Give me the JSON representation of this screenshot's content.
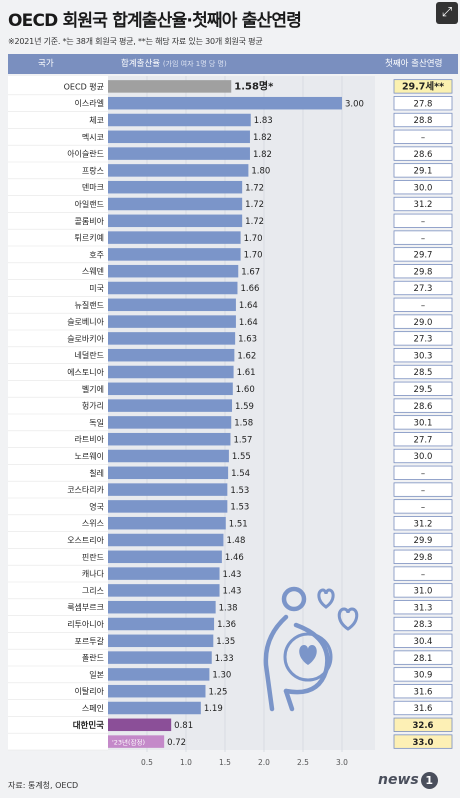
{
  "page": {
    "title": "OECD 회원국 합계출산율·첫째아 출산연령",
    "note": "※2021년 기준. *는 38개 회원국 평균, **는 해당 자료 있는 30개 회원국 평균",
    "header": {
      "country": "국가",
      "tfr": "합계출산율",
      "tfr_sub": "(가임 여자 1명 당 명)",
      "age": "첫째아 출산연령"
    },
    "source": "자료: 통계청, OECD",
    "logo": "news",
    "logo_num": "1",
    "expand_icon": "⤢"
  },
  "chart_data": {
    "type": "bar",
    "orientation": "horizontal",
    "title": "OECD 회원국 합계출산율·첫째아 출산연령",
    "xlim": [
      0,
      3.5
    ],
    "x_ticks": [
      0.5,
      1.0,
      1.5,
      2.0,
      2.5,
      3.0
    ],
    "tick_labels": [
      "0.5",
      "1.0",
      "1.5",
      "2.0",
      "2.5",
      "3.0"
    ],
    "rows": [
      {
        "country": "OECD 평균",
        "tfr": 1.58,
        "tfr_label": "1.58명*",
        "age": "29.7세**",
        "style": "avg"
      },
      {
        "country": "이스라엘",
        "tfr": 3.0,
        "tfr_label": "3.00",
        "age": "27.8",
        "style": "normal"
      },
      {
        "country": "체코",
        "tfr": 1.83,
        "tfr_label": "1.83",
        "age": "28.8",
        "style": "normal"
      },
      {
        "country": "멕시코",
        "tfr": 1.82,
        "tfr_label": "1.82",
        "age": "–",
        "style": "normal"
      },
      {
        "country": "아이슬란드",
        "tfr": 1.82,
        "tfr_label": "1.82",
        "age": "28.6",
        "style": "normal"
      },
      {
        "country": "프랑스",
        "tfr": 1.8,
        "tfr_label": "1.80",
        "age": "29.1",
        "style": "normal"
      },
      {
        "country": "덴마크",
        "tfr": 1.72,
        "tfr_label": "1.72",
        "age": "30.0",
        "style": "normal"
      },
      {
        "country": "아일랜드",
        "tfr": 1.72,
        "tfr_label": "1.72",
        "age": "31.2",
        "style": "normal"
      },
      {
        "country": "콜롬비아",
        "tfr": 1.72,
        "tfr_label": "1.72",
        "age": "–",
        "style": "normal"
      },
      {
        "country": "튀르키예",
        "tfr": 1.7,
        "tfr_label": "1.70",
        "age": "–",
        "style": "normal"
      },
      {
        "country": "호주",
        "tfr": 1.7,
        "tfr_label": "1.70",
        "age": "29.7",
        "style": "normal"
      },
      {
        "country": "스웨덴",
        "tfr": 1.67,
        "tfr_label": "1.67",
        "age": "29.8",
        "style": "normal"
      },
      {
        "country": "미국",
        "tfr": 1.66,
        "tfr_label": "1.66",
        "age": "27.3",
        "style": "normal"
      },
      {
        "country": "뉴질랜드",
        "tfr": 1.64,
        "tfr_label": "1.64",
        "age": "–",
        "style": "normal"
      },
      {
        "country": "슬로베니아",
        "tfr": 1.64,
        "tfr_label": "1.64",
        "age": "29.0",
        "style": "normal"
      },
      {
        "country": "슬로바키아",
        "tfr": 1.63,
        "tfr_label": "1.63",
        "age": "27.3",
        "style": "normal"
      },
      {
        "country": "네덜란드",
        "tfr": 1.62,
        "tfr_label": "1.62",
        "age": "30.3",
        "style": "normal"
      },
      {
        "country": "에스토니아",
        "tfr": 1.61,
        "tfr_label": "1.61",
        "age": "28.5",
        "style": "normal"
      },
      {
        "country": "벨기에",
        "tfr": 1.6,
        "tfr_label": "1.60",
        "age": "29.5",
        "style": "normal"
      },
      {
        "country": "헝가리",
        "tfr": 1.59,
        "tfr_label": "1.59",
        "age": "28.6",
        "style": "normal"
      },
      {
        "country": "독일",
        "tfr": 1.58,
        "tfr_label": "1.58",
        "age": "30.1",
        "style": "normal"
      },
      {
        "country": "라트비아",
        "tfr": 1.57,
        "tfr_label": "1.57",
        "age": "27.7",
        "style": "normal"
      },
      {
        "country": "노르웨이",
        "tfr": 1.55,
        "tfr_label": "1.55",
        "age": "30.0",
        "style": "normal"
      },
      {
        "country": "칠레",
        "tfr": 1.54,
        "tfr_label": "1.54",
        "age": "–",
        "style": "normal"
      },
      {
        "country": "코스타리카",
        "tfr": 1.53,
        "tfr_label": "1.53",
        "age": "–",
        "style": "normal"
      },
      {
        "country": "영국",
        "tfr": 1.53,
        "tfr_label": "1.53",
        "age": "–",
        "style": "normal"
      },
      {
        "country": "스위스",
        "tfr": 1.51,
        "tfr_label": "1.51",
        "age": "31.2",
        "style": "normal"
      },
      {
        "country": "오스트리아",
        "tfr": 1.48,
        "tfr_label": "1.48",
        "age": "29.9",
        "style": "normal"
      },
      {
        "country": "핀란드",
        "tfr": 1.46,
        "tfr_label": "1.46",
        "age": "29.8",
        "style": "normal"
      },
      {
        "country": "캐나다",
        "tfr": 1.43,
        "tfr_label": "1.43",
        "age": "–",
        "style": "normal"
      },
      {
        "country": "그리스",
        "tfr": 1.43,
        "tfr_label": "1.43",
        "age": "31.0",
        "style": "normal"
      },
      {
        "country": "룩셈부르크",
        "tfr": 1.38,
        "tfr_label": "1.38",
        "age": "31.3",
        "style": "normal"
      },
      {
        "country": "리투아니아",
        "tfr": 1.36,
        "tfr_label": "1.36",
        "age": "28.3",
        "style": "normal"
      },
      {
        "country": "포르투갈",
        "tfr": 1.35,
        "tfr_label": "1.35",
        "age": "30.4",
        "style": "normal"
      },
      {
        "country": "폴란드",
        "tfr": 1.33,
        "tfr_label": "1.33",
        "age": "28.1",
        "style": "normal"
      },
      {
        "country": "일본",
        "tfr": 1.3,
        "tfr_label": "1.30",
        "age": "30.9",
        "style": "normal"
      },
      {
        "country": "이탈리아",
        "tfr": 1.25,
        "tfr_label": "1.25",
        "age": "31.6",
        "style": "normal"
      },
      {
        "country": "스페인",
        "tfr": 1.19,
        "tfr_label": "1.19",
        "age": "31.6",
        "style": "normal"
      },
      {
        "country": "대한민국",
        "tfr": 0.81,
        "tfr_label": "0.81",
        "age": "32.6",
        "style": "korea"
      },
      {
        "country": "",
        "tfr": 0.72,
        "tfr_label": "0.72",
        "age": "33.0",
        "style": "korea2",
        "bar_note": "'23년(잠정)"
      }
    ],
    "colors": {
      "bar": "#7b95c9",
      "avg_bar": "#a0a0a0",
      "korea_bar": "#8b4f98",
      "korea_bar2": "#c489c9",
      "header": "#7a8fbf",
      "age_box_border": "#7a8fbf",
      "avg_age_fill": "#fbf1b0",
      "korea_age_fill": "#fdf0b5",
      "illustration": "#7b95c9"
    },
    "illustration": "pregnant-woman-with-hearts-icon"
  }
}
